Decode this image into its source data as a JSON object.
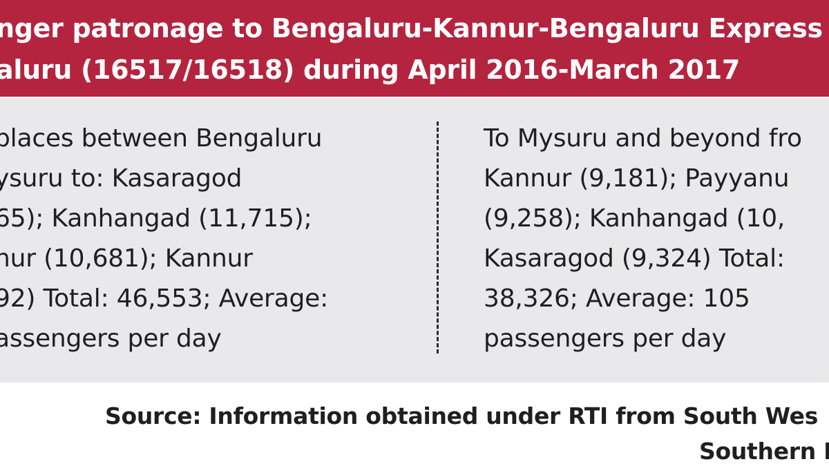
{
  "header": {
    "line1": "nger patronage to Bengaluru-Kannur-Bengaluru Express v",
    "line2": "aluru (16517/16518) during April 2016-March 2017"
  },
  "left_column": {
    "lines": [
      "places between Bengaluru",
      "ysuru to: Kasaragod",
      "65); Kanhangad (11,715);",
      "nur (10,681); Kannur",
      "92) Total: 46,553; Average:",
      "assengers per day"
    ]
  },
  "right_column": {
    "lines": [
      "To Mysuru and beyond fro",
      "Kannur (9,181); Payyanu",
      "(9,258); Kanhangad (10,",
      "Kasaragod (9,324) Total:",
      "38,326; Average: 105",
      "passengers per day"
    ]
  },
  "source": {
    "line1": "Source: Information obtained under RTI from South Wes",
    "line2": "Southern R"
  },
  "colors": {
    "header_bg": "#b4243f",
    "panel_bg": "#e9e8ea",
    "text": "#1f1f1f"
  }
}
